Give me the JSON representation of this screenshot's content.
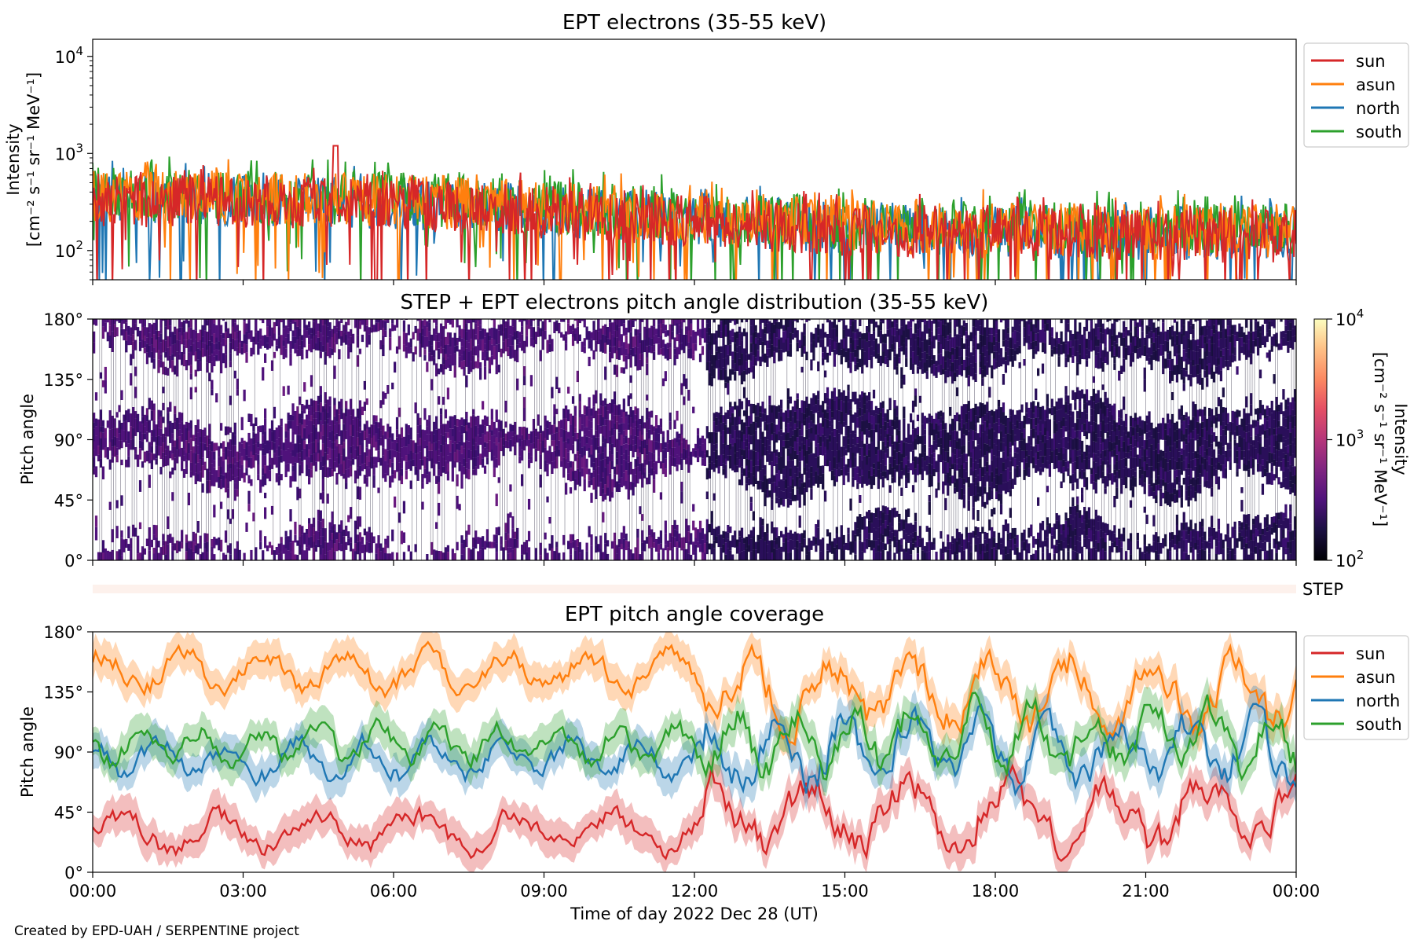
{
  "credit": "Created by EPD-UAH / SERPENTINE project",
  "chart_data": [
    {
      "type": "line",
      "title": "EPT electrons (35-55 keV)",
      "ylabel_line1": "Intensity",
      "ylabel_line2": "[cm⁻² s⁻¹ sr⁻¹ MeV⁻¹]",
      "yscale": "log",
      "ylim": [
        50,
        15000
      ],
      "yticks": [
        {
          "value": 100,
          "base": "10",
          "exp": "2"
        },
        {
          "value": 1000,
          "base": "10",
          "exp": "3"
        },
        {
          "value": 10000,
          "base": "10",
          "exp": "4"
        }
      ],
      "xlim_hours": [
        0,
        24
      ],
      "legend_position": "right",
      "series": [
        {
          "name": "sun",
          "color": "#d62728",
          "level_profile": [
            [
              0,
              330
            ],
            [
              3,
              320
            ],
            [
              6,
              300
            ],
            [
              9,
              250
            ],
            [
              12,
              200
            ],
            [
              15,
              160
            ],
            [
              18,
              150
            ],
            [
              21,
              140
            ],
            [
              24,
              140
            ]
          ]
        },
        {
          "name": "asun",
          "color": "#ff7f0e",
          "level_profile": [
            [
              0,
              360
            ],
            [
              3,
              350
            ],
            [
              6,
              330
            ],
            [
              9,
              280
            ],
            [
              12,
              220
            ],
            [
              15,
              180
            ],
            [
              18,
              170
            ],
            [
              21,
              160
            ],
            [
              24,
              160
            ]
          ]
        },
        {
          "name": "north",
          "color": "#1f77b4",
          "level_profile": [
            [
              0,
              350
            ],
            [
              3,
              330
            ],
            [
              6,
              310
            ],
            [
              9,
              260
            ],
            [
              12,
              210
            ],
            [
              15,
              170
            ],
            [
              18,
              160
            ],
            [
              21,
              150
            ],
            [
              24,
              150
            ]
          ]
        },
        {
          "name": "south",
          "color": "#2ca02c",
          "level_profile": [
            [
              0,
              380
            ],
            [
              3,
              360
            ],
            [
              6,
              340
            ],
            [
              9,
              290
            ],
            [
              12,
              230
            ],
            [
              15,
              190
            ],
            [
              18,
              180
            ],
            [
              21,
              170
            ],
            [
              24,
              170
            ]
          ]
        }
      ],
      "peak": {
        "series": "sun",
        "hour": 4.85,
        "value": 1200
      }
    },
    {
      "type": "heatmap",
      "title": "STEP + EPT electrons pitch angle distribution (35-55 keV)",
      "ylabel": "Pitch angle",
      "ylim": [
        0,
        180
      ],
      "yticks": [
        "0°",
        "45°",
        "90°",
        "135°",
        "180°"
      ],
      "xlim_hours": [
        0,
        24
      ],
      "colorbar": {
        "label_line1": "Intensity",
        "label_line2": "[cm⁻² s⁻¹ sr⁻¹ MeV⁻¹]",
        "scale": "log",
        "range": [
          100,
          10000
        ],
        "ticks": [
          {
            "value": 100,
            "base": "10",
            "exp": "2"
          },
          {
            "value": 1000,
            "base": "10",
            "exp": "3"
          },
          {
            "value": 10000,
            "base": "10",
            "exp": "4"
          }
        ]
      }
    },
    {
      "type": "bar",
      "label": "STEP",
      "color": "#fdf1ec"
    },
    {
      "type": "line",
      "title": "EPT pitch angle coverage",
      "ylabel": "Pitch angle",
      "ylim": [
        0,
        180
      ],
      "yticks": [
        "0°",
        "45°",
        "90°",
        "135°",
        "180°"
      ],
      "xlabel": "Time of day 2022 Dec 28 (UT)",
      "xticks": [
        "00:00",
        "03:00",
        "06:00",
        "09:00",
        "12:00",
        "15:00",
        "18:00",
        "21:00",
        "00:00"
      ],
      "xlim_hours": [
        0,
        24
      ],
      "legend_position": "right",
      "shaded_band": true,
      "regime_change_hour": 12.2,
      "series": [
        {
          "name": "sun",
          "color": "#d62728",
          "mean_before": 30,
          "mean_after": 45
        },
        {
          "name": "asun",
          "color": "#ff7f0e",
          "mean_before": 150,
          "mean_after": 135
        },
        {
          "name": "north",
          "color": "#1f77b4",
          "mean_before": 85,
          "mean_after": 90
        },
        {
          "name": "south",
          "color": "#2ca02c",
          "mean_before": 95,
          "mean_after": 100
        }
      ]
    }
  ]
}
